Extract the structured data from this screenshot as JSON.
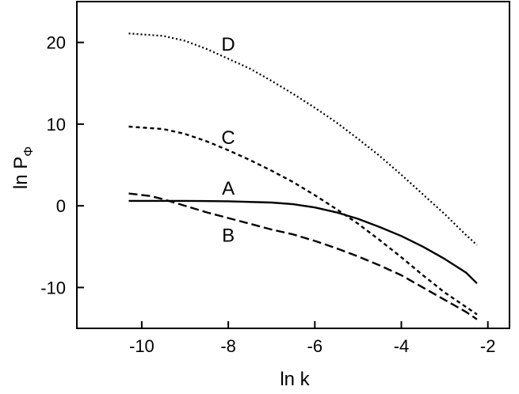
{
  "chart_data": {
    "type": "line",
    "xlabel": "ln k",
    "ylabel": "ln P",
    "ylabel_subscript": "Φ",
    "xlim": [
      -11.5,
      -1.5
    ],
    "ylim": [
      -15,
      25
    ],
    "x_ticks": [
      -10,
      -8,
      -6,
      -4,
      -2
    ],
    "x_tick_labels": [
      "-10",
      "-8",
      "-6",
      "-4",
      "-2"
    ],
    "y_ticks": [
      -10,
      0,
      10,
      20
    ],
    "y_tick_labels": [
      "-10",
      "0",
      "10",
      "20"
    ],
    "grid": false,
    "legend": "none",
    "series": [
      {
        "name": "A",
        "style": "solid",
        "x": [
          -10.3,
          -9.5,
          -9.0,
          -8.0,
          -7.0,
          -6.5,
          -6.0,
          -5.5,
          -5.0,
          -4.5,
          -4.0,
          -3.5,
          -3.0,
          -2.5,
          -2.25
        ],
        "y": [
          0.6,
          0.6,
          0.6,
          0.55,
          0.4,
          0.2,
          -0.2,
          -0.8,
          -1.6,
          -2.6,
          -3.7,
          -5.0,
          -6.5,
          -8.2,
          -9.5
        ]
      },
      {
        "name": "B",
        "style": "dashed",
        "x": [
          -10.3,
          -9.8,
          -9.5,
          -9.0,
          -8.5,
          -8.0,
          -7.5,
          -7.0,
          -6.5,
          -6.0,
          -5.5,
          -5.0,
          -4.5,
          -4.0,
          -3.5,
          -3.0,
          -2.5,
          -2.25
        ],
        "y": [
          1.5,
          1.2,
          0.8,
          0.0,
          -0.8,
          -1.5,
          -2.2,
          -2.9,
          -3.5,
          -4.3,
          -5.2,
          -6.2,
          -7.3,
          -8.5,
          -10.0,
          -11.5,
          -13.0,
          -13.9
        ]
      },
      {
        "name": "C",
        "style": "short-dashed",
        "x": [
          -10.3,
          -9.5,
          -9.0,
          -8.5,
          -8.0,
          -7.5,
          -7.0,
          -6.5,
          -6.0,
          -5.5,
          -5.0,
          -4.5,
          -4.0,
          -3.5,
          -3.0,
          -2.5,
          -2.25
        ],
        "y": [
          9.7,
          9.4,
          8.8,
          7.9,
          6.8,
          5.6,
          4.3,
          2.9,
          1.3,
          -0.4,
          -2.2,
          -4.2,
          -6.3,
          -8.5,
          -10.6,
          -12.4,
          -13.3
        ]
      },
      {
        "name": "D",
        "style": "dotted",
        "x": [
          -10.3,
          -9.5,
          -9.0,
          -8.5,
          -8.0,
          -7.5,
          -7.0,
          -6.5,
          -6.0,
          -5.5,
          -5.0,
          -4.5,
          -4.0,
          -3.5,
          -3.0,
          -2.5,
          -2.25
        ],
        "y": [
          21.1,
          20.8,
          20.2,
          19.2,
          18.0,
          16.8,
          15.3,
          13.7,
          12.0,
          10.2,
          8.2,
          6.1,
          3.8,
          1.4,
          -1.0,
          -3.6,
          -4.8
        ]
      }
    ],
    "curve_labels": [
      {
        "text": "D",
        "x": -8.0,
        "y": 19.6
      },
      {
        "text": "C",
        "x": -8.0,
        "y": 8.2
      },
      {
        "text": "A",
        "x": -8.0,
        "y": 2.0
      },
      {
        "text": "B",
        "x": -8.0,
        "y": -3.8
      }
    ]
  }
}
